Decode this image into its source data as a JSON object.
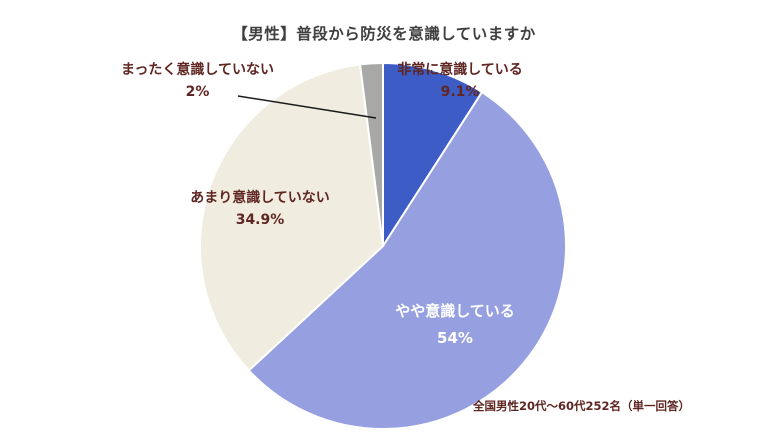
{
  "title": "【男性】普段から防災を意識していますか",
  "footer": "全国男性20代〜60代252名（単一回答）",
  "chart_data": {
    "type": "pie",
    "title": "【男性】普段から防災を意識していますか",
    "start_angle_deg": 0,
    "direction": "clockwise",
    "total": 100,
    "segments": [
      {
        "label": "非常に意識している",
        "value": 9.1,
        "display": "9.1%",
        "color": "#3d5cc6"
      },
      {
        "label": "やや意識している",
        "value": 54,
        "display": "54%",
        "color": "#96a0e0"
      },
      {
        "label": "あまり意識していない",
        "value": 34.9,
        "display": "34.9%",
        "color": "#f0ece0"
      },
      {
        "label": "まったく意識していない",
        "value": 2,
        "display": "2%",
        "color": "#a8a8a6"
      }
    ],
    "note": "全国男性20代〜60代252名（単一回答）",
    "label_text_color": "#5f2622",
    "inside_label_text_color": "#ffffff"
  }
}
